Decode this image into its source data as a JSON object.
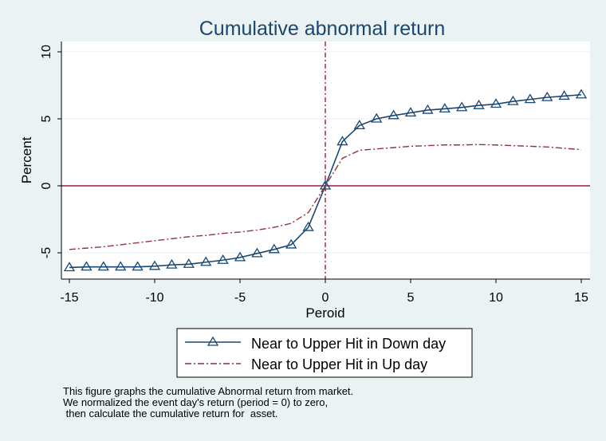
{
  "chart_data": {
    "type": "line",
    "title": "Cumulative abnormal return",
    "xlabel": "Peroid",
    "ylabel": "Percent",
    "xlim": [
      -15,
      15
    ],
    "ylim": [
      -6.8,
      10.5
    ],
    "xticks": [
      -15,
      -10,
      -5,
      0,
      5,
      10,
      15
    ],
    "xtick_labels": [
      "-15",
      "-10",
      "-5",
      "0",
      "5",
      "10",
      "15"
    ],
    "yticks": [
      -5,
      0,
      5,
      10
    ],
    "ytick_labels": [
      "-5",
      "0",
      "5",
      "10"
    ],
    "grid": true,
    "legend_position": "bottom",
    "reference_lines": {
      "x": 0,
      "y": 0
    },
    "x": [
      -15,
      -14,
      -13,
      -12,
      -11,
      -10,
      -9,
      -8,
      -7,
      -6,
      -5,
      -4,
      -3,
      -2,
      -1,
      0,
      1,
      2,
      3,
      4,
      5,
      6,
      7,
      8,
      9,
      10,
      11,
      12,
      13,
      14,
      15
    ],
    "series": [
      {
        "name": "Near to Upper Hit in Down day",
        "color": "#1a476f",
        "marker": "triangle",
        "values": [
          -6.1,
          -6.05,
          -6.05,
          -6.05,
          -6.05,
          -6.0,
          -5.9,
          -5.85,
          -5.7,
          -5.55,
          -5.35,
          -5.05,
          -4.75,
          -4.4,
          -3.1,
          0.0,
          3.3,
          4.5,
          5.0,
          5.25,
          5.45,
          5.65,
          5.75,
          5.85,
          6.0,
          6.1,
          6.3,
          6.45,
          6.6,
          6.7,
          6.8
        ]
      },
      {
        "name": "Near to Upper Hit in Up day",
        "color": "#90353b",
        "marker": "none",
        "values": [
          -4.75,
          -4.65,
          -4.55,
          -4.4,
          -4.25,
          -4.1,
          -3.95,
          -3.8,
          -3.7,
          -3.55,
          -3.45,
          -3.3,
          -3.1,
          -2.8,
          -2.0,
          0.0,
          2.05,
          2.65,
          2.75,
          2.85,
          2.95,
          3.0,
          3.05,
          3.05,
          3.08,
          3.05,
          3.0,
          2.95,
          2.9,
          2.8,
          2.7
        ]
      }
    ]
  },
  "note": {
    "lines": [
      "This figure graphs the cumulative Abnormal return from market.",
      "We normalized the event day's return (period = 0) to zero,",
      " then calculate the cumulative return for  asset."
    ]
  },
  "colors": {
    "background": "#eaf2f3",
    "plot_background": "#ffffff",
    "grid": "#eaf2f3",
    "reference_line": "#9c1f3a",
    "title": "#1a476f"
  }
}
